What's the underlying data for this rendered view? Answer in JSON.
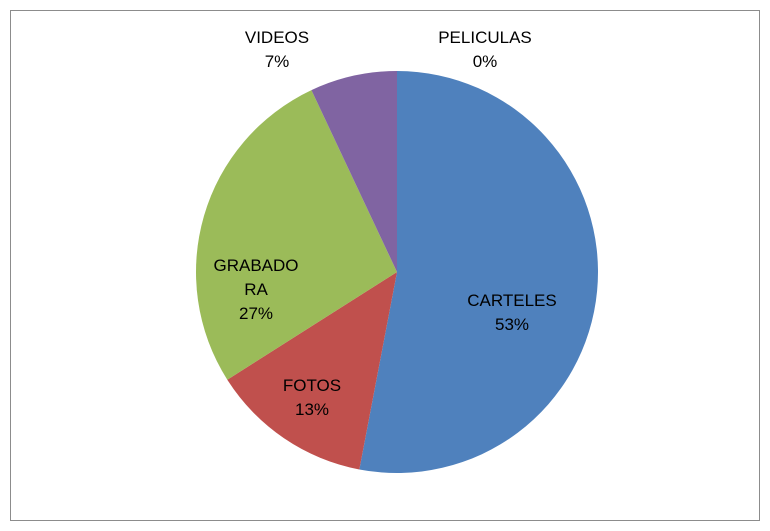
{
  "chart_data": {
    "type": "pie",
    "categories": [
      "CARTELES",
      "FOTOS",
      "GRABADORA",
      "VIDEOS",
      "PELICULAS"
    ],
    "values": [
      53,
      13,
      27,
      7,
      0
    ],
    "value_labels": [
      "53%",
      "13%",
      "27%",
      "7%",
      "0%"
    ],
    "colors": [
      "#4f81bd",
      "#c0504d",
      "#9bbb59",
      "#8064a2",
      "#4bacc6"
    ]
  }
}
